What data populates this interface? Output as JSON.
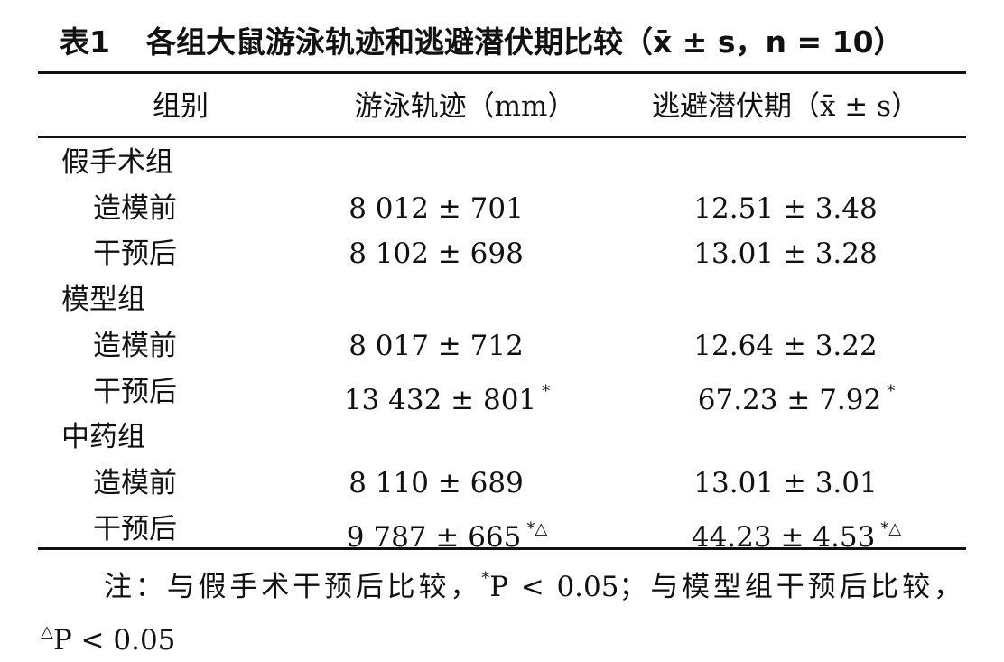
{
  "title": {
    "label": "表1",
    "text": "各组大鼠游泳轨迹和逃避潜伏期比较（x̄ ± s，n = 10）"
  },
  "table": {
    "header": [
      "组别",
      "游泳轨迹（mm）",
      "逃避潜伏期（x̄ ± s）"
    ],
    "rows": [
      {
        "group": "假手术组"
      },
      {
        "label": "造模前",
        "track": "8 012 ± 701",
        "latency": "12.51 ± 3.48"
      },
      {
        "label": "干预后",
        "track": "8 102 ± 698",
        "latency": "13.01 ± 3.28"
      },
      {
        "group": "模型组"
      },
      {
        "label": "造模前",
        "track": "8 017 ± 712",
        "latency": "12.64 ± 3.22"
      },
      {
        "label": "干预后",
        "track": "13 432 ± 801",
        "track_sig": "*",
        "latency": "67.23 ± 7.92",
        "latency_sig": "*"
      },
      {
        "group": "中药组"
      },
      {
        "label": "造模前",
        "track": "8 110 ± 689",
        "latency": "13.01 ± 3.01"
      },
      {
        "label": "干预后",
        "track": "9 787 ± 665",
        "track_sig": "*△",
        "latency": "44.23 ± 4.53",
        "latency_sig": "*△"
      }
    ]
  },
  "note": [
    [
      {
        "text": "注：与假手术干预后比较，"
      },
      {
        "sup": "*"
      },
      {
        "text": "P < 0.05；与模型组干预后比较，"
      }
    ],
    [
      {
        "sup": "△"
      },
      {
        "text": "P < 0.05"
      }
    ]
  ]
}
